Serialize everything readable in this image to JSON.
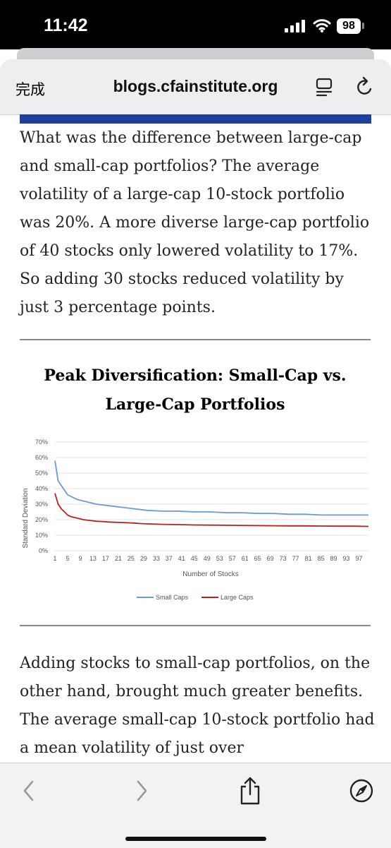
{
  "status_bar": {
    "time": "11:42",
    "battery": "98"
  },
  "nav": {
    "done_label": "完成",
    "url": "blogs.cfainstitute.org"
  },
  "article": {
    "paragraph_1": "What was the difference between large-cap and small-cap portfolios? The average volatility of a large-cap 10-stock portfolio was 20%. A more diverse large-cap portfolio of 40 stocks only lowered volatility to 17%. So adding 30 stocks reduced volatility by just 3 percentage points.",
    "chart_heading": "Peak Diversification: Small-Cap vs. Large-Cap Portfolios",
    "paragraph_2": "Adding stocks to small-cap portfolios, on the other hand, brought much greater benefits. The average small-cap 10-stock portfolio had a mean volatility of just over"
  },
  "chart_data": {
    "type": "line",
    "ylabel": "Standard Deviation",
    "xlabel": "Number of Stocks",
    "ylim": [
      0,
      70
    ],
    "xlim": [
      1,
      100
    ],
    "y_ticks": [
      "0%",
      "10%",
      "20%",
      "30%",
      "40%",
      "50%",
      "60%",
      "70%"
    ],
    "x_ticks": [
      "1",
      "5",
      "9",
      "13",
      "17",
      "21",
      "25",
      "29",
      "33",
      "37",
      "41",
      "45",
      "49",
      "53",
      "57",
      "61",
      "65",
      "69",
      "73",
      "77",
      "81",
      "85",
      "89",
      "93",
      "97"
    ],
    "grid": true,
    "legend_position": "bottom",
    "series": [
      {
        "name": "Small Caps",
        "color": "#6b9bd2",
        "x": [
          1,
          2,
          3,
          4,
          5,
          6,
          7,
          8,
          9,
          10,
          12,
          14,
          16,
          18,
          20,
          22,
          24,
          26,
          28,
          30,
          35,
          40,
          45,
          50,
          55,
          60,
          65,
          70,
          75,
          80,
          85,
          90,
          95,
          100
        ],
        "values": [
          58,
          45,
          42,
          39,
          36,
          35,
          34,
          33,
          32.5,
          32,
          31,
          30,
          29.5,
          29,
          28.5,
          28,
          27.5,
          27,
          26.5,
          26,
          25.5,
          25.5,
          25,
          25,
          24.5,
          24.5,
          24,
          24,
          23.5,
          23.5,
          23,
          23,
          23,
          23
        ]
      },
      {
        "name": "Large Caps",
        "color": "#b22222",
        "x": [
          1,
          2,
          3,
          4,
          5,
          6,
          7,
          8,
          9,
          10,
          12,
          14,
          16,
          18,
          20,
          22,
          24,
          26,
          28,
          30,
          35,
          40,
          45,
          50,
          55,
          60,
          65,
          70,
          75,
          80,
          85,
          90,
          95,
          100
        ],
        "values": [
          37,
          30,
          27,
          25,
          23,
          22,
          21.5,
          21,
          20.5,
          20,
          19.5,
          19,
          18.8,
          18.5,
          18.3,
          18.2,
          18,
          17.8,
          17.5,
          17.3,
          17,
          16.8,
          16.6,
          16.5,
          16.4,
          16.3,
          16.2,
          16.1,
          16,
          16,
          15.9,
          15.8,
          15.8,
          15.7
        ]
      }
    ]
  },
  "colors": {
    "accent_bar": "#1f3f9b",
    "small_caps": "#6b9bd2",
    "large_caps": "#b22222"
  },
  "icons": [
    "signal-icon",
    "wifi-icon",
    "battery-icon",
    "reader-mode-icon",
    "reload-icon",
    "back-icon",
    "forward-icon",
    "share-icon",
    "compass-icon"
  ]
}
